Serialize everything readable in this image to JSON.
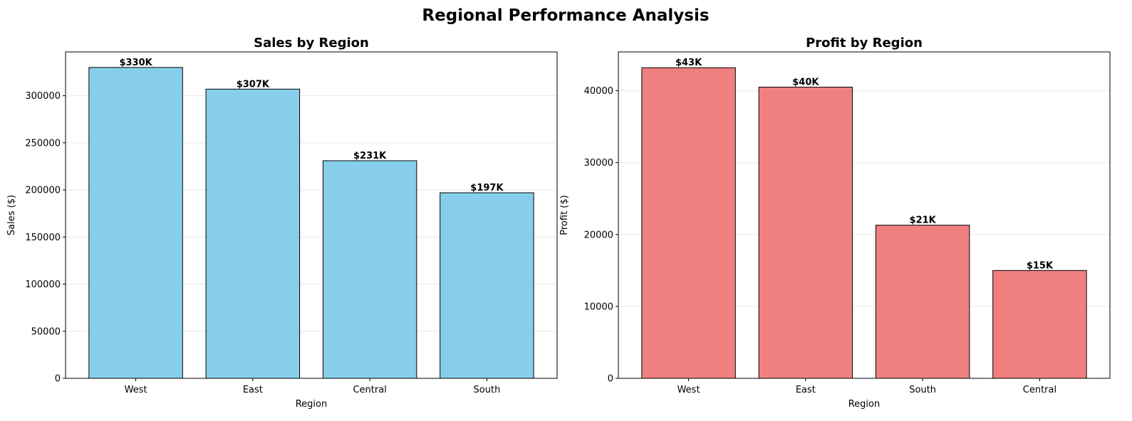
{
  "figure": {
    "title": "Regional Performance Analysis"
  },
  "chart_data": [
    {
      "type": "bar",
      "title": "Sales by Region",
      "xlabel": "Region",
      "ylabel": "Sales ($)",
      "categories": [
        "West",
        "East",
        "Central",
        "South"
      ],
      "values": [
        330000,
        307000,
        231000,
        197000
      ],
      "data_labels": [
        "$330K",
        "$307K",
        "$231K",
        "$197K"
      ],
      "ylim": [
        0,
        346500
      ],
      "yticks": [
        0,
        50000,
        100000,
        150000,
        200000,
        250000,
        300000
      ],
      "ytick_labels": [
        "0",
        "50000",
        "100000",
        "150000",
        "200000",
        "250000",
        "300000"
      ],
      "bar_color": "#87CEEB",
      "edge_color": "#000000",
      "grid": "y"
    },
    {
      "type": "bar",
      "title": "Profit by Region",
      "xlabel": "Region",
      "ylabel": "Profit ($)",
      "categories": [
        "West",
        "East",
        "South",
        "Central"
      ],
      "values": [
        43200,
        40500,
        21300,
        15000
      ],
      "data_labels": [
        "$43K",
        "$40K",
        "$21K",
        "$15K"
      ],
      "ylim": [
        0,
        45400
      ],
      "yticks": [
        0,
        10000,
        20000,
        30000,
        40000
      ],
      "ytick_labels": [
        "0",
        "10000",
        "20000",
        "30000",
        "40000"
      ],
      "bar_color": "#F08080",
      "edge_color": "#000000",
      "grid": "y"
    }
  ]
}
